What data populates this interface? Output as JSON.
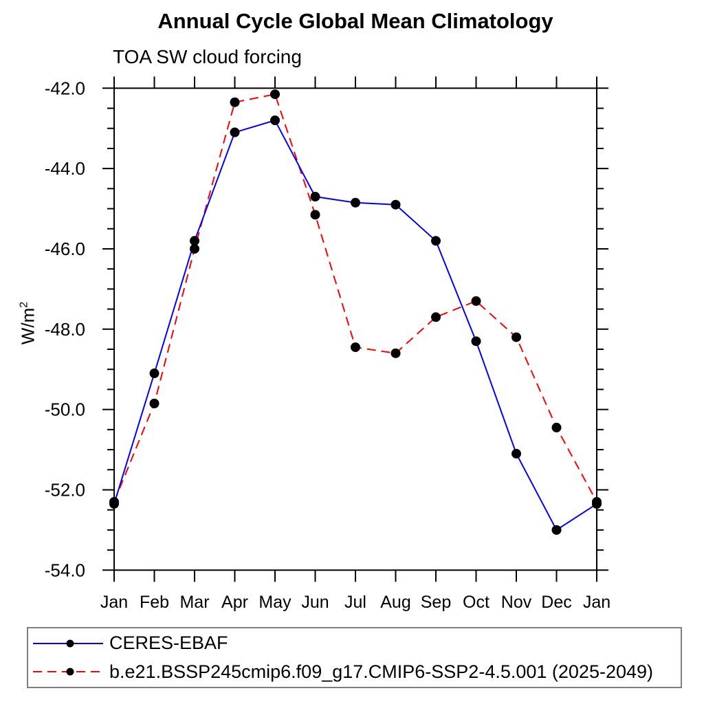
{
  "header": {
    "title": "Annual Cycle Global Mean Climatology",
    "subtitle": "TOA SW cloud forcing"
  },
  "y_axis_label_display": {
    "base": "W/m",
    "sup": "2"
  },
  "chart_data": {
    "type": "line",
    "title": "Annual Cycle Global Mean Climatology",
    "subtitle": "TOA SW cloud forcing",
    "ylabel": "W/m^2",
    "xlabel": "",
    "categories": [
      "Jan",
      "Feb",
      "Mar",
      "Apr",
      "May",
      "Jun",
      "Jul",
      "Aug",
      "Sep",
      "Oct",
      "Nov",
      "Dec",
      "Jan"
    ],
    "ylim": [
      -54.0,
      -42.0
    ],
    "y_major_tick_step": 2.0,
    "y_minor_tick_step": 0.5,
    "y_tick_labels": [
      "-42.0",
      "-44.0",
      "-46.0",
      "-48.0",
      "-50.0",
      "-52.0",
      "-54.0"
    ],
    "grid": false,
    "legend_position": "bottom-left-box",
    "frame": "full-box-with-outward-ticks",
    "marker_color": "#000000",
    "series": [
      {
        "name": "CERES-EBAF",
        "color": "#0000ff",
        "line_style": "solid",
        "marker": "filled-black-circle",
        "values": [
          -52.35,
          -49.1,
          -45.8,
          -43.1,
          -42.8,
          -44.7,
          -44.85,
          -44.9,
          -45.8,
          -48.3,
          -51.1,
          -53.0,
          -52.35
        ]
      },
      {
        "name": "b.e21.BSSP245cmip6.f09_g17.CMIP6-SSP2-4.5.001 (2025-2049)",
        "color": "#ff0000",
        "line_style": "dashed",
        "marker": "filled-black-circle",
        "values": [
          -52.3,
          -49.85,
          -46.0,
          -42.35,
          -42.15,
          -45.15,
          -48.45,
          -48.6,
          -47.7,
          -47.3,
          -48.2,
          -50.45,
          -52.3
        ]
      }
    ]
  }
}
